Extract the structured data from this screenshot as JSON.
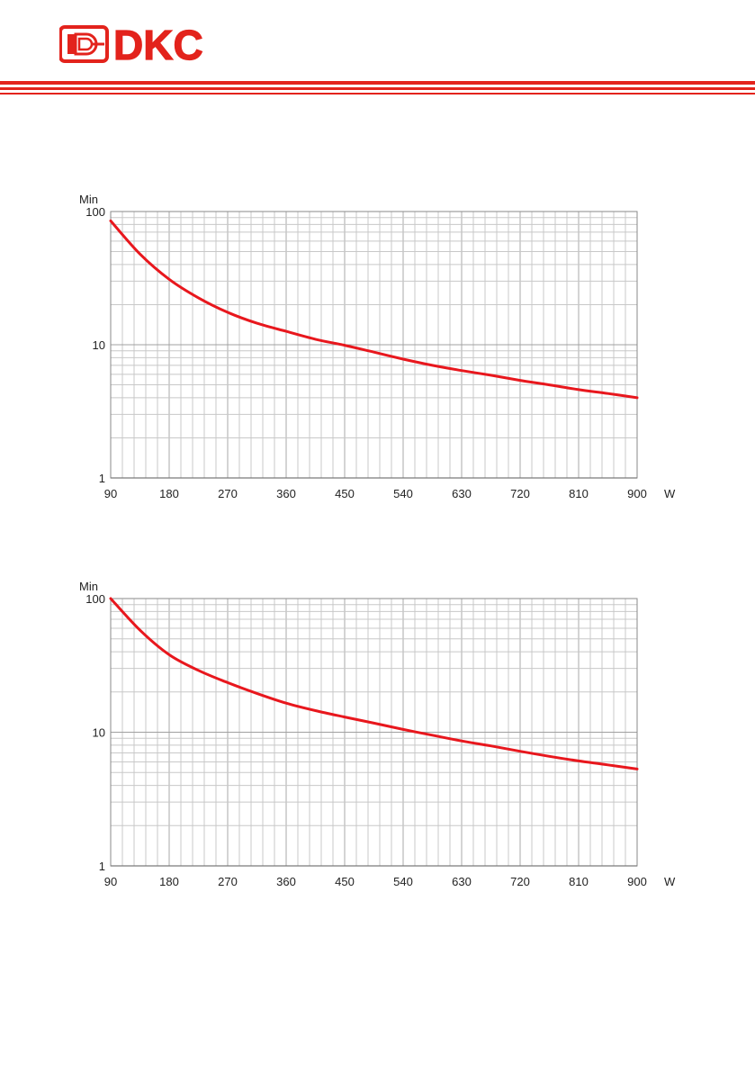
{
  "header": {
    "logo_text": "DKC",
    "brand_color": "#e3231c"
  },
  "chart_data": [
    {
      "type": "line",
      "y_unit_label": "Min",
      "x_unit_label": "W",
      "x_ticks": [
        "90",
        "180",
        "270",
        "360",
        "450",
        "540",
        "630",
        "720",
        "810",
        "900"
      ],
      "y_ticks": [
        "1",
        "10",
        "100"
      ],
      "xlim": [
        90,
        900
      ],
      "ylim": [
        1,
        100
      ],
      "y_scale": "log",
      "grid": true,
      "series": [
        {
          "color": "#e8171d",
          "x": [
            90,
            135,
            180,
            225,
            270,
            315,
            360,
            405,
            450,
            495,
            540,
            585,
            630,
            675,
            720,
            765,
            810,
            855,
            900
          ],
          "y": [
            85,
            48,
            31,
            22.5,
            17.5,
            14.5,
            12.6,
            11,
            9.9,
            8.8,
            7.8,
            7,
            6.4,
            5.9,
            5.4,
            5,
            4.6,
            4.3,
            4
          ]
        }
      ]
    },
    {
      "type": "line",
      "y_unit_label": "Min",
      "x_unit_label": "W",
      "x_ticks": [
        "90",
        "180",
        "270",
        "360",
        "450",
        "540",
        "630",
        "720",
        "810",
        "900"
      ],
      "y_ticks": [
        "1",
        "10",
        "100"
      ],
      "xlim": [
        90,
        900
      ],
      "ylim": [
        1,
        100
      ],
      "y_scale": "log",
      "grid": true,
      "series": [
        {
          "color": "#e8171d",
          "x": [
            90,
            135,
            180,
            225,
            270,
            315,
            360,
            405,
            450,
            495,
            540,
            585,
            630,
            675,
            720,
            765,
            810,
            855,
            900
          ],
          "y": [
            100,
            58,
            38,
            29,
            23.5,
            19.5,
            16.5,
            14.5,
            13,
            11.7,
            10.5,
            9.5,
            8.6,
            7.9,
            7.2,
            6.6,
            6.1,
            5.7,
            5.3
          ]
        }
      ]
    }
  ]
}
